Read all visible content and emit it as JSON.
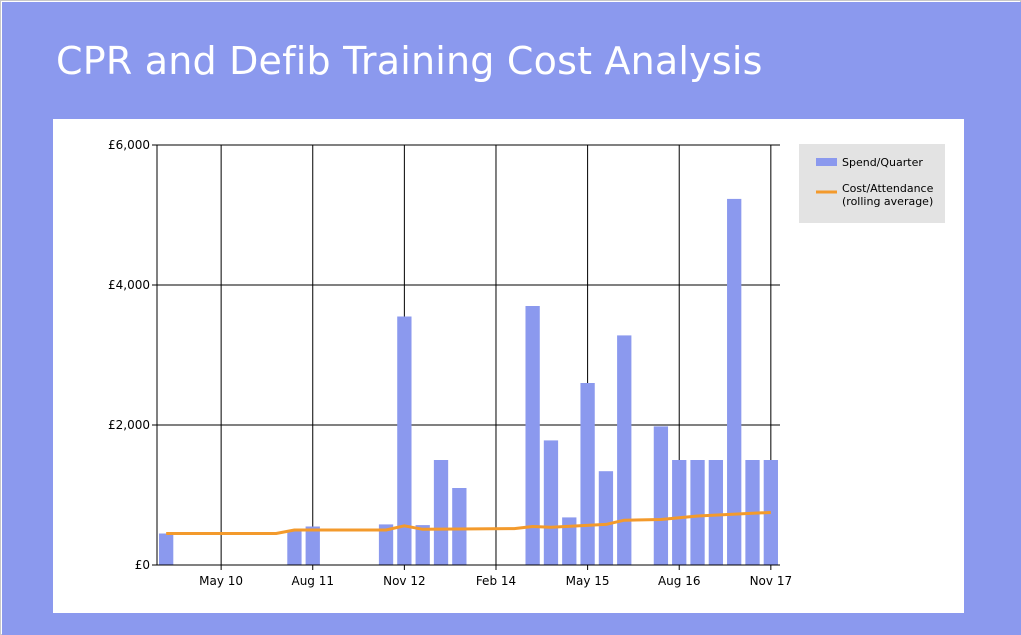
{
  "title": "CPR and Defib Training Cost Analysis",
  "colors": {
    "background": "#8b99ee",
    "panel": "#ffffff",
    "bar": "#8b99ee",
    "line": "#f39a2c",
    "legend_bg": "#e3e3e3",
    "grid": "#000000"
  },
  "chart_data": {
    "type": "bar",
    "x_axis": {
      "type": "date",
      "ticks": [
        "May 10",
        "Aug 11",
        "Nov 12",
        "Feb 14",
        "May 15",
        "Aug 16",
        "Nov 17"
      ],
      "range": [
        "2009-08",
        "2017-11"
      ]
    },
    "y_axis": {
      "ticks": [
        "£0",
        "£2,000",
        "£4,000",
        "£6,000"
      ],
      "tick_values": [
        0,
        2000,
        4000,
        6000
      ],
      "ylim": [
        0,
        6000
      ],
      "format": "currency GBP"
    },
    "grid": true,
    "legend_position": "top-right",
    "series": [
      {
        "name": "Spend/Quarter",
        "type": "bar",
        "x": [
          "2009-08",
          "2011-05",
          "2011-08",
          "2012-08",
          "2012-11",
          "2013-02",
          "2013-05",
          "2013-08",
          "2014-08",
          "2014-11",
          "2015-02",
          "2015-05",
          "2015-08",
          "2015-11",
          "2016-05",
          "2016-08",
          "2016-11",
          "2017-02",
          "2017-05",
          "2017-08",
          "2017-11"
        ],
        "values": [
          450,
          500,
          550,
          580,
          3550,
          570,
          1500,
          1100,
          3700,
          1780,
          680,
          2600,
          1340,
          3280,
          1980,
          1500,
          1500,
          1500,
          5230,
          1500,
          1500
        ]
      },
      {
        "name": "Cost/Attendance\n(rolling average)",
        "type": "line",
        "x": [
          "2009-08",
          "2011-02",
          "2011-05",
          "2012-08",
          "2012-11",
          "2013-02",
          "2014-05",
          "2014-08",
          "2014-11",
          "2015-08",
          "2015-11",
          "2016-05",
          "2016-11",
          "2017-08",
          "2017-11"
        ],
        "values": [
          450,
          450,
          500,
          500,
          560,
          510,
          520,
          550,
          540,
          580,
          640,
          650,
          700,
          740,
          750
        ]
      }
    ]
  }
}
